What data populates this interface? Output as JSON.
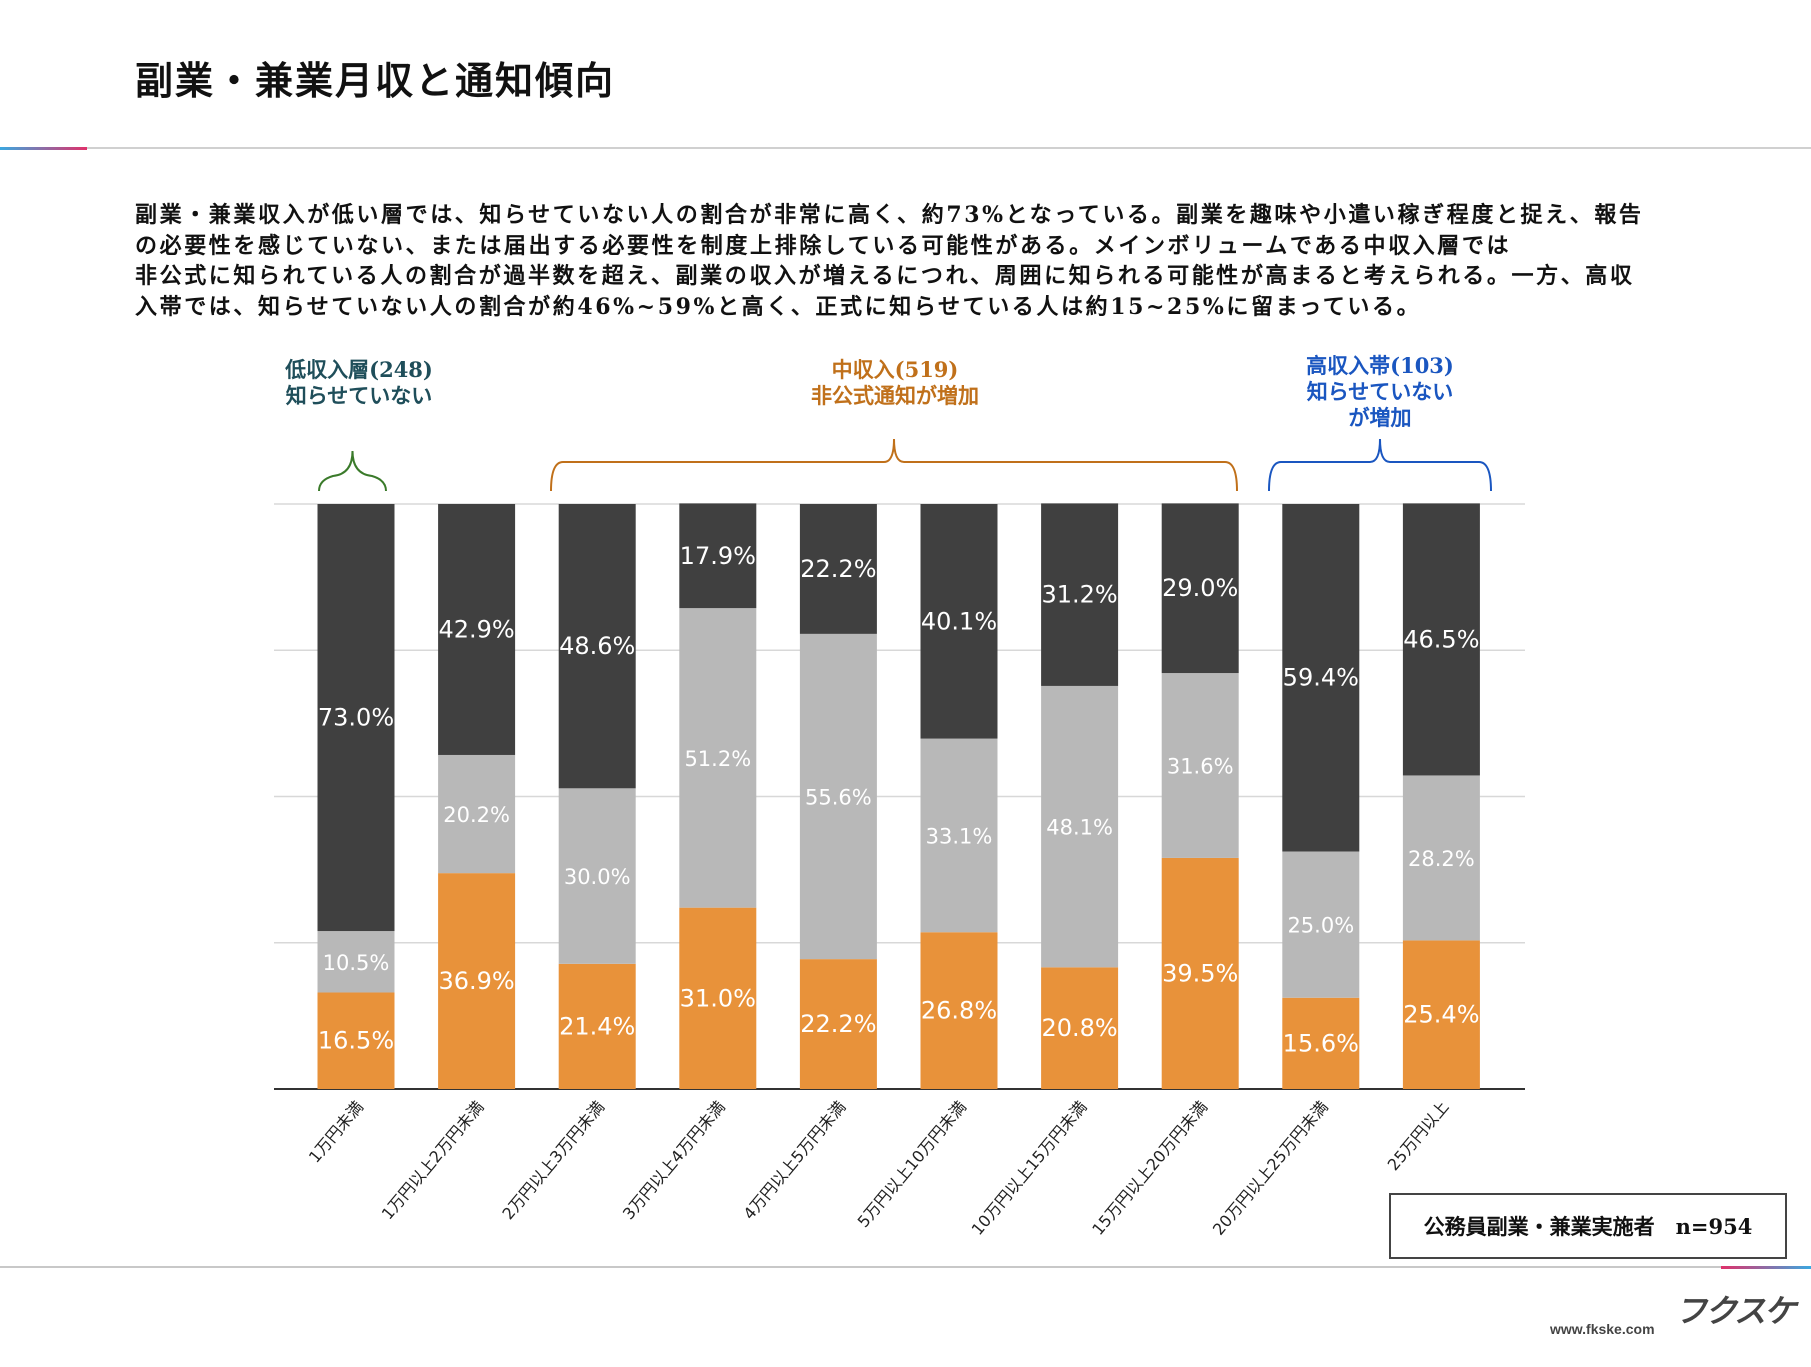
{
  "title": "副業・兼業月収と通知傾向",
  "paragraph": [
    "副業・兼業収入が低い層では、知らせていない人の割合が非常に高く、約73%となっている。副業を趣味や小遣い稼ぎ程度と捉え、報告",
    "の必要性を感じていない、または届出する必要性を制度上排除している可能性がある。メインボリュームである中収入層では",
    "非公式に知られている人の割合が過半数を超え、副業の収入が増えるにつれ、周囲に知られる可能性が高まると考えられる。一方、高収",
    "入帯では、知らせていない人の割合が約46%~59%と高く、正式に知らせている人は約15~25%に留まっている。"
  ],
  "annotations": [
    {
      "lines": [
        "低収入層(248)",
        "知らせていない"
      ],
      "color": "#1f4e5a",
      "brace_color": "#3a7a2a"
    },
    {
      "lines": [
        "中収入(519)",
        "非公式通知が増加"
      ],
      "color": "#c0701a",
      "brace_color": "#c0701a"
    },
    {
      "lines": [
        "高収入帯(103)",
        "知らせていない",
        "が増加"
      ],
      "color": "#1a56c0",
      "brace_color": "#1a56c0"
    }
  ],
  "sample_box": "公務員副業・兼業実施者　n=954",
  "logo": "フクスケ",
  "url": "www.fkske.com",
  "chart_data": {
    "type": "bar",
    "stacked": true,
    "orientation": "vertical",
    "ylim": [
      0,
      100
    ],
    "grid": true,
    "categories": [
      "1万円未満",
      "1万円以上2万円未満",
      "2万円以上3万円未満",
      "3万円以上4万円未満",
      "4万円以上5万円未満",
      "5万円以上10万円未満",
      "10万円以上15万円未満",
      "15万円以上20万円未満",
      "20万円以上25万円未満",
      "25万円以上"
    ],
    "series": [
      {
        "color": "#e8923a",
        "values": [
          16.5,
          36.9,
          21.4,
          31.0,
          22.2,
          26.8,
          20.8,
          39.5,
          15.6,
          25.4
        ]
      },
      {
        "color": "#b8b8b8",
        "values": [
          10.5,
          20.2,
          30.0,
          51.2,
          55.6,
          33.1,
          48.1,
          31.6,
          25.0,
          28.2
        ]
      },
      {
        "color": "#404040",
        "values": [
          73.0,
          42.9,
          48.6,
          17.9,
          22.2,
          40.1,
          31.2,
          29.0,
          59.4,
          46.5
        ]
      }
    ]
  }
}
